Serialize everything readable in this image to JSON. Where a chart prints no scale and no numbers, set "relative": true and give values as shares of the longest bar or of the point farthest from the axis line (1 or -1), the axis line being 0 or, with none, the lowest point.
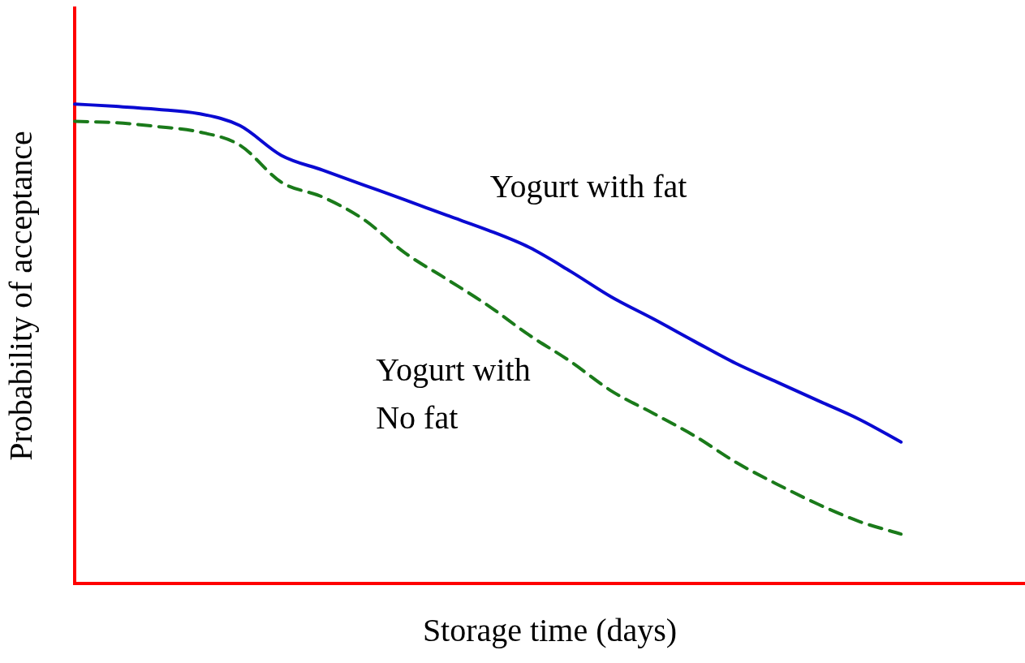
{
  "chart_data": {
    "type": "line",
    "relative": true,
    "xlabel": "Storage time (days)",
    "ylabel": "Probability of acceptance",
    "tick_labels": false,
    "grid": false,
    "legend": false,
    "marker": "none",
    "categories": [
      null,
      null,
      null,
      null,
      null,
      null,
      null,
      null,
      null,
      null,
      null,
      null,
      null,
      null,
      null,
      null,
      null,
      null,
      null,
      null,
      null,
      null,
      null,
      null
    ],
    "series": [
      {
        "name": "Yogurt with fat",
        "color": "#0a0ad2",
        "line_style": "solid",
        "values": [
          1,
          0.995,
          0.989,
          0.98,
          0.955,
          0.893,
          0.862,
          0.831,
          0.8,
          0.768,
          0.737,
          0.701,
          0.651,
          0.597,
          0.552,
          0.505,
          0.459,
          0.42,
          0.381,
          0.342,
          0.295,
          null,
          null,
          null
        ]
      },
      {
        "name": "Yogurt with No fat",
        "color": "#1a7a1a",
        "line_style": "dashed",
        "values": [
          0.964,
          0.961,
          0.953,
          0.942,
          0.914,
          0.837,
          0.806,
          0.759,
          0.689,
          0.635,
          0.58,
          0.518,
          0.463,
          0.401,
          0.355,
          0.308,
          0.253,
          0.207,
          0.165,
          0.129,
          0.103,
          null,
          null,
          null
        ]
      }
    ]
  }
}
